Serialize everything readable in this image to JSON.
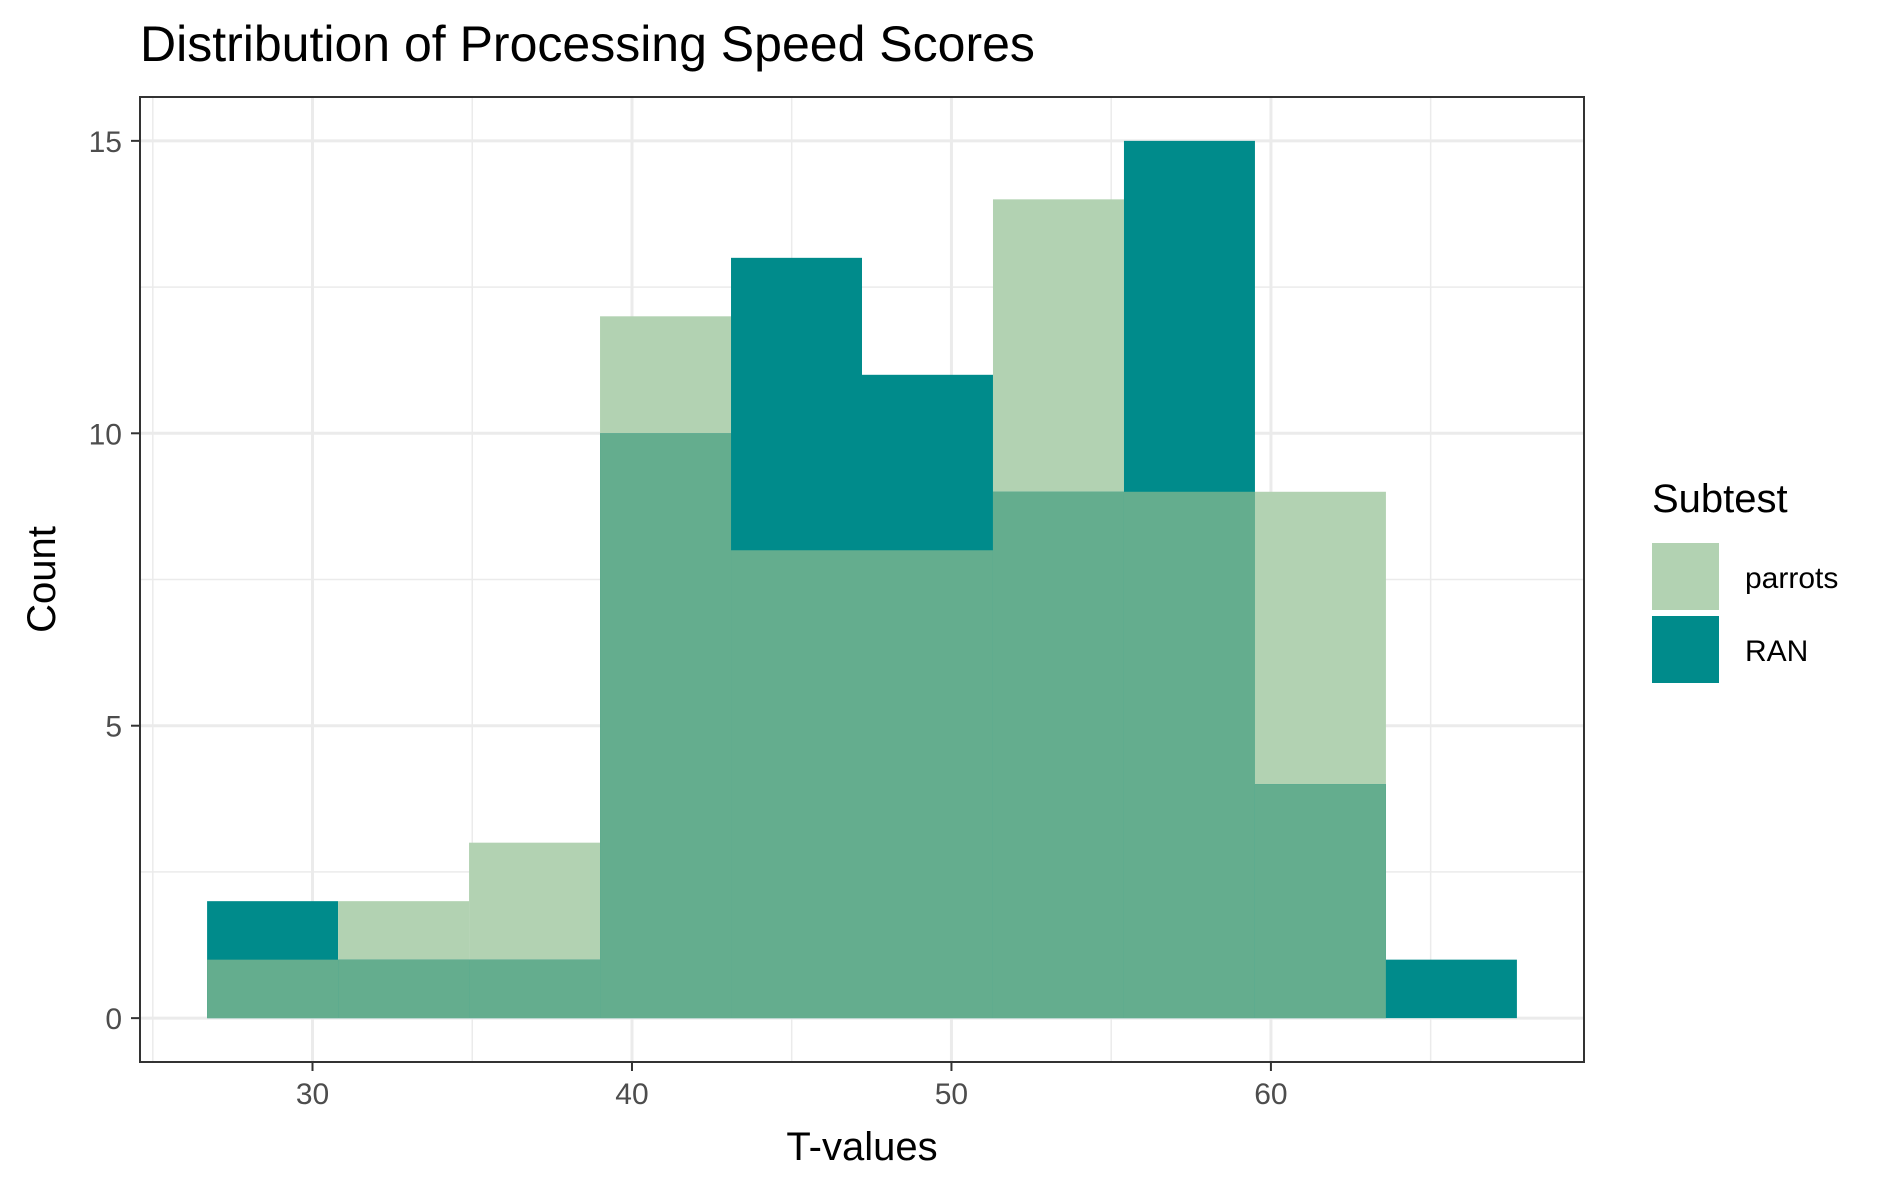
{
  "chart_data": {
    "type": "histogram",
    "title": "Distribution of Processing Speed Scores",
    "xlabel": "T-values",
    "ylabel": "Count",
    "xlim": [
      24.6,
      69.8
    ],
    "ylim": [
      -0.75,
      15.75
    ],
    "x_ticks": [
      30,
      40,
      50,
      60
    ],
    "y_ticks": [
      0,
      5,
      10,
      15
    ],
    "grid": true,
    "legend": {
      "title": "Subtest",
      "position": "right"
    },
    "bin_edges": [
      26.7,
      30.8,
      34.9,
      39.0,
      43.1,
      47.2,
      51.3,
      55.4,
      59.5,
      63.6,
      67.7
    ],
    "series": [
      {
        "name": "parrots",
        "color": "#b2d2b2",
        "counts": [
          1,
          2,
          3,
          12,
          8,
          8,
          14,
          9,
          9,
          0
        ]
      },
      {
        "name": "RAN",
        "color": "#008b8b",
        "counts": [
          2,
          1,
          1,
          10,
          13,
          11,
          9,
          15,
          4,
          1
        ]
      }
    ],
    "overlap_color": "#64ad8e"
  }
}
